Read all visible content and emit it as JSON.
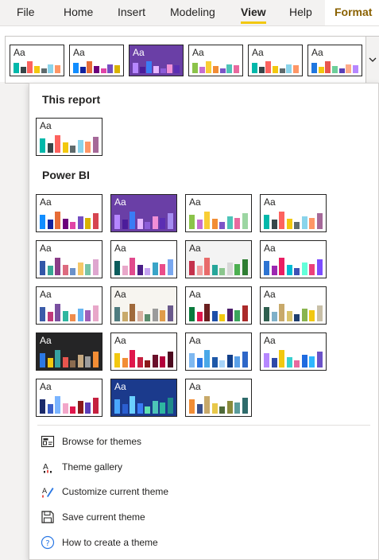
{
  "tabs": [
    {
      "label": "File",
      "active": false
    },
    {
      "label": "Home",
      "active": false
    },
    {
      "label": "Insert",
      "active": false
    },
    {
      "label": "Modeling",
      "active": false
    },
    {
      "label": "View",
      "active": true
    },
    {
      "label": "Help",
      "active": false
    },
    {
      "label": "Format",
      "active": false
    }
  ],
  "ribbon": {
    "expand_icon": "chevron-down-icon",
    "themes": [
      {
        "bg": "#ffffff",
        "text": "#252423",
        "bars": [
          "#01b8aa",
          "#374649",
          "#fd625e",
          "#f2c80f",
          "#5f6b6d",
          "#8ad4eb",
          "#fe9666"
        ]
      },
      {
        "bg": "#ffffff",
        "text": "#252423",
        "bars": [
          "#118dff",
          "#12239e",
          "#e66c37",
          "#6b007b",
          "#e044a7",
          "#744ec2",
          "#d9b300"
        ]
      },
      {
        "bg": "#6a3fa6",
        "text": "#ffffff",
        "bars": [
          "#b687ff",
          "#4b1c9a",
          "#3a7cf5",
          "#e6b6ff",
          "#8c5cd8",
          "#f08fd6",
          "#5b2eb3"
        ]
      },
      {
        "bg": "#ffffff",
        "text": "#252423",
        "bars": [
          "#8bc34a",
          "#c66ed1",
          "#f9ce35",
          "#f28d35",
          "#7b55c7",
          "#4dc4b8",
          "#e8699f"
        ]
      },
      {
        "bg": "#ffffff",
        "text": "#252423",
        "bars": [
          "#01b8aa",
          "#374649",
          "#fd625e",
          "#f2c80f",
          "#5f6b6d",
          "#8ad4eb",
          "#fe9666"
        ]
      },
      {
        "bg": "#ffffff",
        "text": "#252423",
        "bars": [
          "#1f77e0",
          "#f2c80f",
          "#e8554e",
          "#6dcf9a",
          "#5a3fb8",
          "#fdab89",
          "#b687ff"
        ]
      }
    ]
  },
  "sections": {
    "this_report": "This report",
    "power_bi": "Power BI"
  },
  "this_report_theme": {
    "bg": "#ffffff",
    "text": "#252423",
    "bars": [
      "#01b8aa",
      "#374649",
      "#fd625e",
      "#f2c80f",
      "#5f6b6d",
      "#8ad4eb",
      "#fe9666",
      "#a66999"
    ]
  },
  "power_bi_themes": [
    {
      "bg": "#ffffff",
      "text": "#252423",
      "bars": [
        "#118dff",
        "#12239e",
        "#e66c37",
        "#6b007b",
        "#e044a7",
        "#744ec2",
        "#d9b300",
        "#d64550"
      ]
    },
    {
      "bg": "#6a3fa6",
      "text": "#ffffff",
      "bars": [
        "#b687ff",
        "#4b1c9a",
        "#3a7cf5",
        "#e6b6ff",
        "#8c5cd8",
        "#f08fd6",
        "#5b2eb3",
        "#a58cf0"
      ]
    },
    {
      "bg": "#ffffff",
      "text": "#252423",
      "bars": [
        "#8bc34a",
        "#c66ed1",
        "#f9ce35",
        "#f28d35",
        "#7b55c7",
        "#4dc4b8",
        "#e8699f",
        "#9cd6a2"
      ]
    },
    {
      "bg": "#ffffff",
      "text": "#252423",
      "bars": [
        "#01b8aa",
        "#374649",
        "#fd625e",
        "#f2c80f",
        "#5f6b6d",
        "#8ad4eb",
        "#fe9666",
        "#a66999"
      ]
    },
    {
      "bg": "#ffffff",
      "text": "#252423",
      "bars": [
        "#3257a8",
        "#37a794",
        "#8b3d88",
        "#dd6b7f",
        "#6b91c9",
        "#f5c869",
        "#77c4a8",
        "#dea6cf"
      ]
    },
    {
      "bg": "#ffffff",
      "text": "#252423",
      "bars": [
        "#0a5c5c",
        "#e8a7c9",
        "#e14a8d",
        "#4a1e87",
        "#c5a3f2",
        "#3aa4c7",
        "#ea4c89",
        "#7aa8f0"
      ]
    },
    {
      "bg": "#f3f3f3",
      "text": "#252423",
      "bars": [
        "#c4314b",
        "#f29f9f",
        "#e86a6a",
        "#26a69a",
        "#8bc68d",
        "#d7d7d7",
        "#4caf50",
        "#2e7d32"
      ]
    },
    {
      "bg": "#ffffff",
      "text": "#252423",
      "bars": [
        "#2c73d2",
        "#9c27b0",
        "#e91e63",
        "#00bcd4",
        "#3f51b5",
        "#64ffda",
        "#ec407a",
        "#7c4dff"
      ]
    },
    {
      "bg": "#ffffff",
      "text": "#252423",
      "bars": [
        "#3b5ba9",
        "#c0397a",
        "#7a4fa0",
        "#2eb6a0",
        "#f08c4c",
        "#68b5f0",
        "#a05fb8",
        "#e8a7c9"
      ]
    },
    {
      "bg": "#f7f5f0",
      "text": "#252423",
      "bars": [
        "#4f7c7f",
        "#c8a96a",
        "#a06a3c",
        "#d8b0a0",
        "#5a8c6d",
        "#9b9b9b",
        "#e09c4a",
        "#6a5a8c"
      ]
    },
    {
      "bg": "#ffffff",
      "text": "#252423",
      "bars": [
        "#0a7a3c",
        "#e0174c",
        "#6b1f1f",
        "#1e4fa8",
        "#f2c80f",
        "#4d1f6b",
        "#3ba55c",
        "#ab2a2a"
      ]
    },
    {
      "bg": "#ffffff",
      "text": "#252423",
      "bars": [
        "#2f5f4f",
        "#7fb0c8",
        "#c8a96a",
        "#d9c36a",
        "#1f3f6f",
        "#8ab44f",
        "#f2c80f",
        "#c9c0a8"
      ]
    },
    {
      "bg": "#252526",
      "text": "#ffffff",
      "bars": [
        "#2b78e4",
        "#f2c80f",
        "#36a2a2",
        "#e8554e",
        "#8a6b4f",
        "#c5a880",
        "#9c9c9c",
        "#f28d35"
      ]
    },
    {
      "bg": "#ffffff",
      "text": "#252423",
      "bars": [
        "#f2c80f",
        "#f28d35",
        "#e0174c",
        "#c5203f",
        "#8b1a1a",
        "#6b0f2a",
        "#b3003b",
        "#4d0a1f"
      ]
    },
    {
      "bg": "#ffffff",
      "text": "#252423",
      "bars": [
        "#7fb8f0",
        "#2b78e4",
        "#4aa8e8",
        "#1e58a8",
        "#a8d4f8",
        "#123f8a",
        "#5aa0e8",
        "#2e67c8"
      ]
    },
    {
      "bg": "#ffffff",
      "text": "#252423",
      "bars": [
        "#b687ff",
        "#2e49a8",
        "#f2c80f",
        "#39d0d0",
        "#e8699f",
        "#1f6be0",
        "#2eb6ff",
        "#6b52c8"
      ]
    },
    {
      "bg": "#ffffff",
      "text": "#252423",
      "bars": [
        "#1b2a6b",
        "#3a5ec8",
        "#7ab4ff",
        "#f2a6c9",
        "#e0174c",
        "#8b1a1a",
        "#5a3fb8",
        "#c5203f"
      ]
    },
    {
      "bg": "#1b3a8c",
      "text": "#ffffff",
      "bars": [
        "#4aa8ff",
        "#2b5fd0",
        "#6bd0ff",
        "#3a7cf5",
        "#5fe0b0",
        "#4dc4b8",
        "#2eb6a0",
        "#1f8a8a"
      ]
    },
    {
      "bg": "#ffffff",
      "text": "#252423",
      "bars": [
        "#f28d35",
        "#3a4f8c",
        "#c8a96a",
        "#e8c84a",
        "#4f6b3a",
        "#8a8a3a",
        "#5a9c9c",
        "#2e6b6b"
      ]
    }
  ],
  "menu": [
    {
      "label": "Browse for themes",
      "icon": "browse-icon"
    },
    {
      "label": "Theme gallery",
      "icon": "theme-gallery-icon"
    },
    {
      "label": "Customize current theme",
      "icon": "customize-icon"
    },
    {
      "label": "Save current theme",
      "icon": "save-icon"
    },
    {
      "label": "How to create a theme",
      "icon": "help-icon"
    }
  ]
}
